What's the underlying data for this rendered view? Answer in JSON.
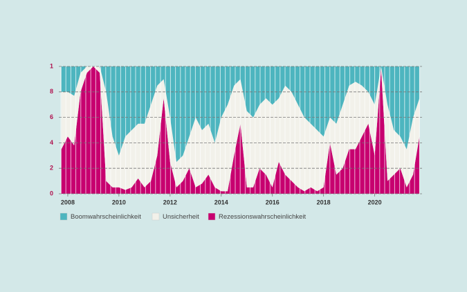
{
  "chart_data": {
    "type": "stacked_area",
    "x": [
      2007.75,
      2008,
      2008.25,
      2008.5,
      2008.75,
      2009,
      2009.25,
      2009.5,
      2009.75,
      2010,
      2010.25,
      2010.5,
      2010.75,
      2011,
      2011.25,
      2011.5,
      2011.75,
      2012,
      2012.25,
      2012.5,
      2012.75,
      2013,
      2013.25,
      2013.5,
      2013.75,
      2014,
      2014.25,
      2014.5,
      2014.75,
      2015,
      2015.25,
      2015.5,
      2015.75,
      2016,
      2016.25,
      2016.5,
      2016.75,
      2017,
      2017.25,
      2017.5,
      2017.75,
      2018,
      2018.25,
      2018.5,
      2018.75,
      2019,
      2019.25,
      2019.5,
      2019.75,
      2020,
      2020.25,
      2020.5,
      2020.75,
      2021,
      2021.25,
      2021.5,
      2021.75
    ],
    "series": [
      {
        "name": "Boomwahrscheinlichkeit",
        "color": "#4db5bf",
        "values": [
          0.2,
          0.2,
          0.23,
          0.05,
          0,
          0,
          0,
          0.2,
          0.55,
          0.7,
          0.55,
          0.5,
          0.45,
          0.45,
          0.3,
          0.15,
          0.1,
          0.4,
          0.75,
          0.7,
          0.55,
          0.4,
          0.5,
          0.45,
          0.6,
          0.4,
          0.3,
          0.15,
          0.1,
          0.35,
          0.4,
          0.3,
          0.25,
          0.3,
          0.25,
          0.15,
          0.2,
          0.3,
          0.4,
          0.45,
          0.5,
          0.55,
          0.4,
          0.45,
          0.3,
          0.15,
          0.12,
          0.15,
          0.2,
          0.3,
          0,
          0.3,
          0.5,
          0.55,
          0.65,
          0.4,
          0.25
        ]
      },
      {
        "name": "Unsicherheit",
        "color": "#f2f1ea",
        "values": [
          0.45,
          0.35,
          0.39,
          0.15,
          0.05,
          0,
          0.05,
          0.7,
          0.4,
          0.25,
          0.42,
          0.45,
          0.43,
          0.5,
          0.6,
          0.55,
          0.15,
          0.35,
          0.2,
          0.2,
          0.25,
          0.55,
          0.42,
          0.4,
          0.35,
          0.58,
          0.68,
          0.55,
          0.35,
          0.6,
          0.55,
          0.5,
          0.6,
          0.65,
          0.5,
          0.7,
          0.7,
          0.65,
          0.58,
          0.5,
          0.48,
          0.4,
          0.2,
          0.4,
          0.5,
          0.5,
          0.53,
          0.4,
          0.25,
          0.4,
          0.02,
          0.6,
          0.35,
          0.25,
          0.3,
          0.45,
          0.3
        ]
      },
      {
        "name": "Rezessionswahrscheinlichkeit",
        "color": "#c7006f",
        "values": [
          0.35,
          0.45,
          0.38,
          0.8,
          0.95,
          1,
          0.95,
          0.1,
          0.05,
          0.05,
          0.03,
          0.05,
          0.12,
          0.05,
          0.1,
          0.3,
          0.75,
          0.25,
          0.05,
          0.1,
          0.2,
          0.05,
          0.08,
          0.15,
          0.05,
          0.02,
          0.02,
          0.3,
          0.55,
          0.05,
          0.05,
          0.2,
          0.15,
          0.05,
          0.25,
          0.15,
          0.1,
          0.05,
          0.02,
          0.05,
          0.02,
          0.05,
          0.4,
          0.15,
          0.2,
          0.35,
          0.35,
          0.45,
          0.55,
          0.3,
          0.98,
          0.1,
          0.15,
          0.2,
          0.05,
          0.15,
          0.45
        ]
      }
    ],
    "xlim": [
      2007.65,
      2021.85
    ],
    "xticks": [
      2008,
      2010,
      2012,
      2014,
      2016,
      2018,
      2020
    ],
    "ylim": [
      0,
      1
    ],
    "yticks": [
      0,
      {
        "value": 0.2,
        "label": "2"
      },
      {
        "value": 0.4,
        "label": "4"
      },
      {
        "value": 0.6,
        "label": "6"
      },
      {
        "value": 0.8,
        "label": "8"
      },
      1
    ],
    "grid": true
  }
}
